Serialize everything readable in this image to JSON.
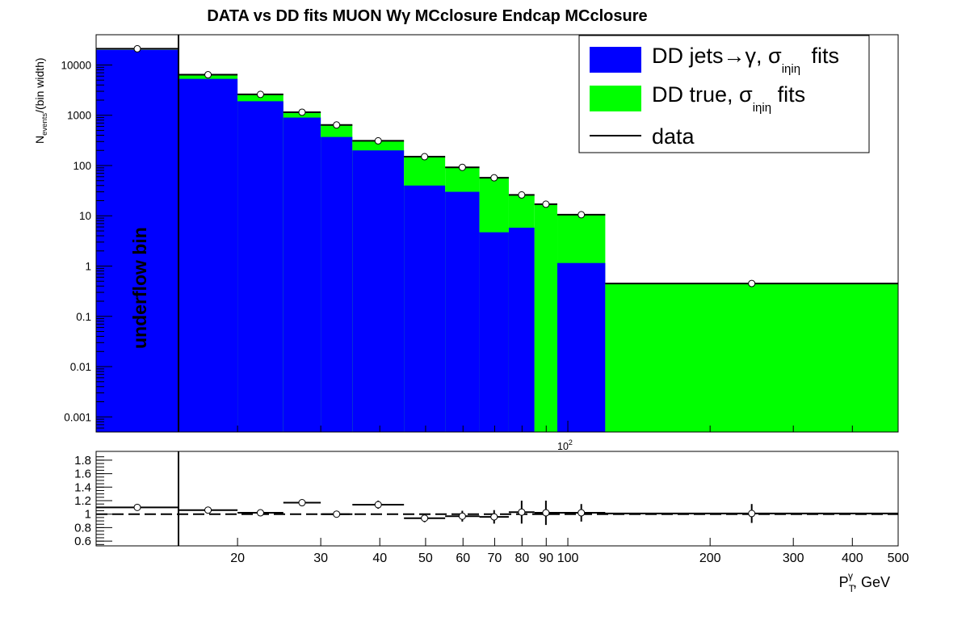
{
  "chart_data": [
    {
      "type": "bar",
      "title": "DATA vs DD fits MUON Wγ  MCclosure Endcap  MCclosure",
      "ylabel_main": "N",
      "ylabel_sub": "events",
      "ylabel_tail": "/(bin width)",
      "yscale": "log",
      "ylim": [
        0.0005,
        40000
      ],
      "xscale": "log",
      "x_scale_label": "10",
      "x_scale_exp": "2",
      "yticks": [
        {
          "v": 10000,
          "label": "10000"
        },
        {
          "v": 1000,
          "label": "1000"
        },
        {
          "v": 100,
          "label": "100"
        },
        {
          "v": 10,
          "label": "10"
        },
        {
          "v": 1,
          "label": "1"
        },
        {
          "v": 0.1,
          "label": "0.1"
        },
        {
          "v": 0.01,
          "label": "0.01"
        },
        {
          "v": 0.001,
          "label": "0.001"
        }
      ],
      "underflow_label": "underflow bin",
      "legend_position": "top-right",
      "legend": [
        {
          "key": "jets",
          "pre": "DD jets→γ, σ",
          "sub": "iηiη",
          "post": " fits",
          "color": "#0000ff"
        },
        {
          "key": "true",
          "pre": "DD true, σ",
          "sub": "iηiη",
          "post": " fits",
          "color": "#00ff00"
        },
        {
          "key": "data",
          "pre": "data",
          "sub": "",
          "post": "",
          "color": "#000000"
        }
      ],
      "bins": [
        {
          "lo": "underflow",
          "hi": 15,
          "jets": 20000,
          "true": 0,
          "data": 21000
        },
        {
          "lo": 15,
          "hi": 20,
          "jets": 5300,
          "true": 1200,
          "data": 6400
        },
        {
          "lo": 20,
          "hi": 25,
          "jets": 1900,
          "true": 650,
          "data": 2600
        },
        {
          "lo": 25,
          "hi": 30,
          "jets": 900,
          "true": 240,
          "data": 1150
        },
        {
          "lo": 30,
          "hi": 35,
          "jets": 370,
          "true": 270,
          "data": 640
        },
        {
          "lo": 35,
          "hi": 45,
          "jets": 200,
          "true": 110,
          "data": 310
        },
        {
          "lo": 45,
          "hi": 55,
          "jets": 40,
          "true": 110,
          "data": 150
        },
        {
          "lo": 55,
          "hi": 65,
          "jets": 30,
          "true": 61,
          "data": 92
        },
        {
          "lo": 65,
          "hi": 75,
          "jets": 4.7,
          "true": 52,
          "data": 57
        },
        {
          "lo": 75,
          "hi": 85,
          "jets": 5.8,
          "true": 20,
          "data": 26
        },
        {
          "lo": 85,
          "hi": 95,
          "jets": 0,
          "true": 17,
          "data": 17
        },
        {
          "lo": 95,
          "hi": 120,
          "jets": 1.15,
          "true": 9.2,
          "data": 10.5
        },
        {
          "lo": 120,
          "hi": 500,
          "jets": 0,
          "true": 0.45,
          "data": 0.45
        }
      ]
    },
    {
      "type": "scatter",
      "xlabel": "P",
      "xlabel_sub": "T",
      "xlabel_sup": "γ",
      "xlabel_tail": ", GeV",
      "ylim": [
        0.53,
        1.93
      ],
      "yticks": [
        "0.6",
        "0.8",
        "1",
        "1.2",
        "1.4",
        "1.6",
        "1.8"
      ],
      "xticks": [
        "20",
        "30",
        "40",
        "50",
        "60",
        "70",
        "80",
        "90",
        "100",
        "200",
        "300",
        "400",
        "500"
      ],
      "reference_line": 1.0,
      "ratio": [
        {
          "lo": "underflow",
          "hi": 15,
          "y": 1.1,
          "err": 0.01
        },
        {
          "lo": 15,
          "hi": 20,
          "y": 1.06,
          "err": 0.02
        },
        {
          "lo": 20,
          "hi": 25,
          "y": 1.02,
          "err": 0.03
        },
        {
          "lo": 25,
          "hi": 30,
          "y": 1.17,
          "err": 0.04
        },
        {
          "lo": 30,
          "hi": 35,
          "y": 1.0,
          "err": 0.04
        },
        {
          "lo": 35,
          "hi": 45,
          "y": 1.14,
          "err": 0.06
        },
        {
          "lo": 45,
          "hi": 55,
          "y": 0.94,
          "err": 0.06
        },
        {
          "lo": 55,
          "hi": 65,
          "y": 0.97,
          "err": 0.08
        },
        {
          "lo": 65,
          "hi": 75,
          "y": 0.96,
          "err": 0.1
        },
        {
          "lo": 75,
          "hi": 85,
          "y": 1.03,
          "err": 0.17
        },
        {
          "lo": 85,
          "hi": 95,
          "y": 1.02,
          "err": 0.18
        },
        {
          "lo": 95,
          "hi": 120,
          "y": 1.02,
          "err": 0.13
        },
        {
          "lo": 120,
          "hi": 500,
          "y": 1.01,
          "err": 0.14
        }
      ]
    }
  ]
}
